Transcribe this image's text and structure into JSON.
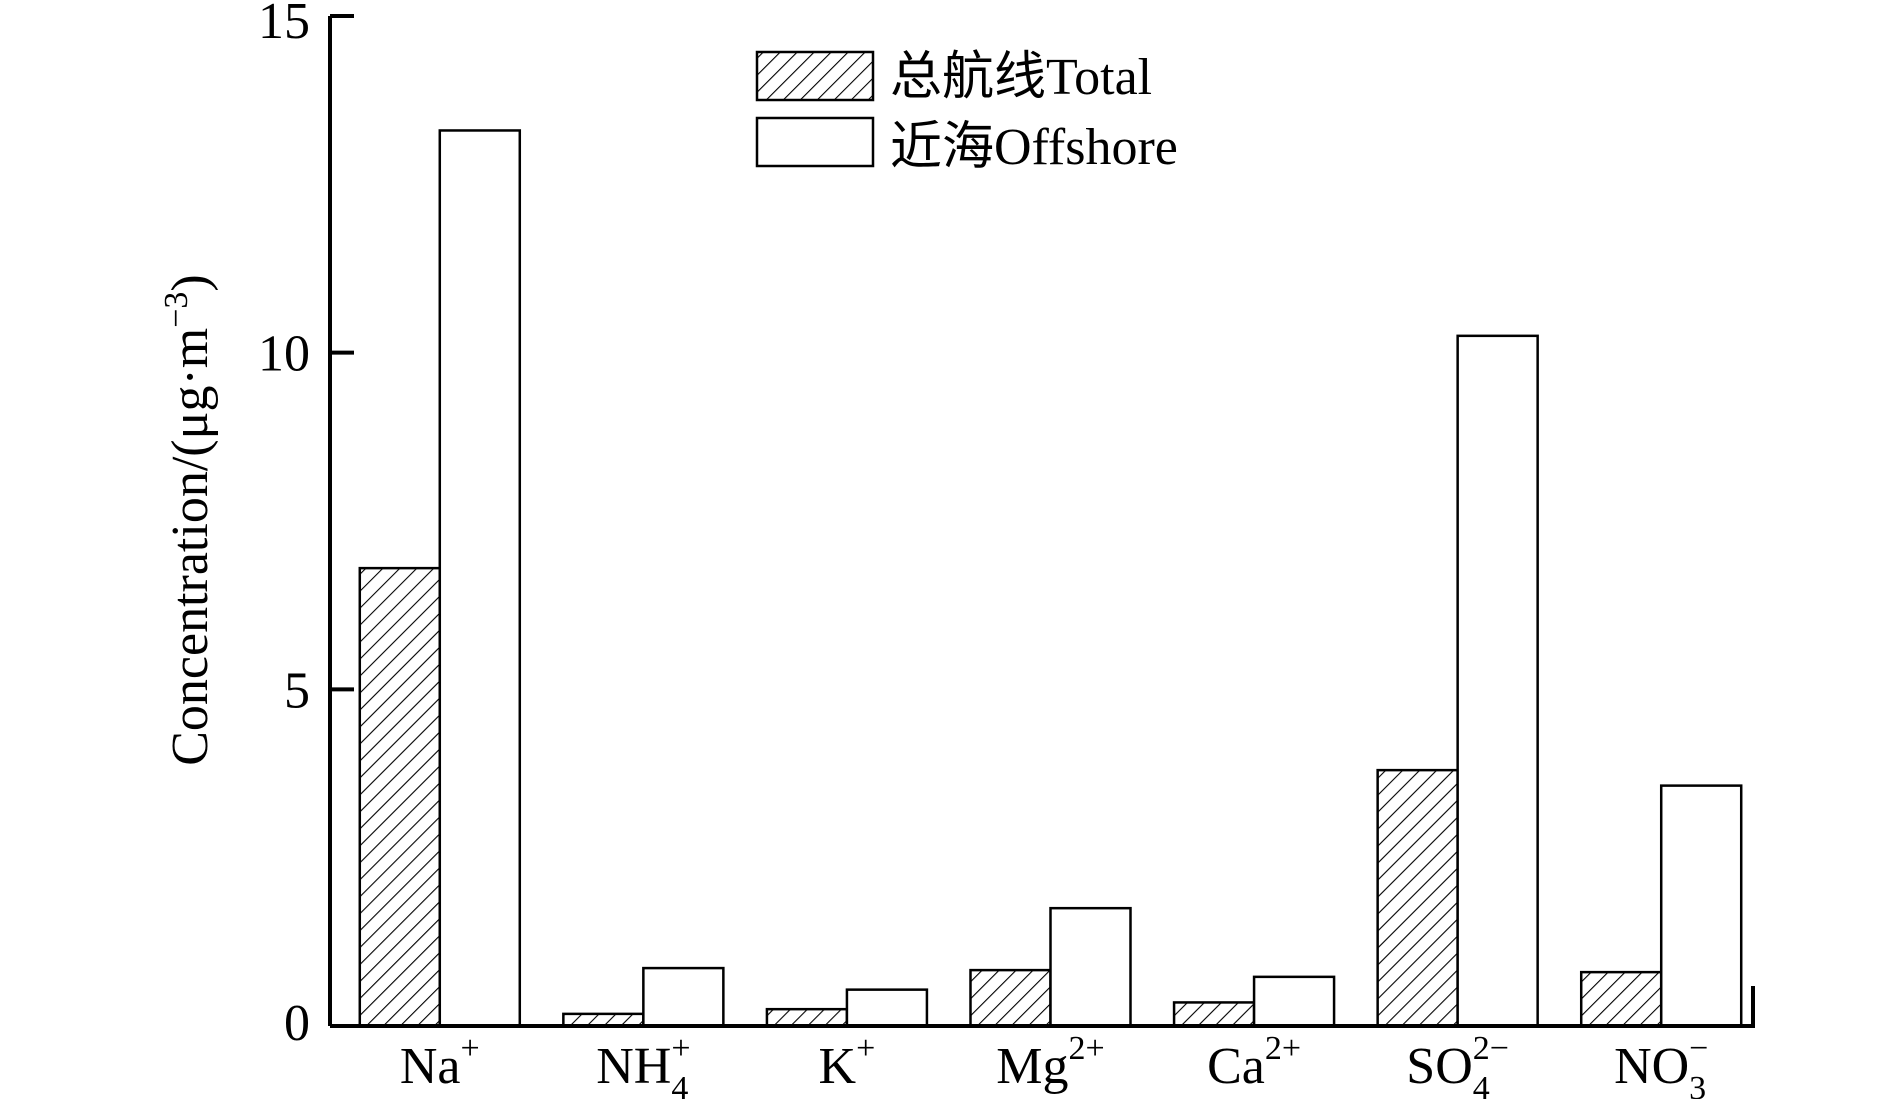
{
  "chart_data": {
    "type": "bar",
    "categories": [
      {
        "base": "Na",
        "sub": "",
        "sup": "+"
      },
      {
        "base": "NH",
        "sub": "4",
        "sup": "+"
      },
      {
        "base": "K",
        "sub": "",
        "sup": "+"
      },
      {
        "base": "Mg",
        "sub": "",
        "sup": "2+"
      },
      {
        "base": "Ca",
        "sub": "",
        "sup": "2+"
      },
      {
        "base": "SO",
        "sub": "4",
        "sup": "2−"
      },
      {
        "base": "NO",
        "sub": "3",
        "sup": "−"
      }
    ],
    "series": [
      {
        "name": "总航线Total",
        "pattern": "hatched",
        "values": [
          6.8,
          0.18,
          0.25,
          0.83,
          0.35,
          3.8,
          0.8
        ]
      },
      {
        "name": "近海Offshore",
        "pattern": "open",
        "values": [
          13.3,
          0.86,
          0.54,
          1.75,
          0.73,
          10.25,
          3.57
        ]
      }
    ],
    "ylabel": "Concentration/(μg·m⁻³)",
    "ylabel_parts": {
      "main": "Concentration/(μg·m",
      "sup": "−3",
      "close": ")"
    },
    "ylim": [
      0,
      15
    ],
    "yticks": [
      "0",
      "5",
      "10",
      "15"
    ],
    "legend_position": "top-center",
    "grid": false,
    "colors": {
      "stroke": "#000000",
      "fill_open": "#ffffff",
      "hatch": "#000000"
    }
  }
}
